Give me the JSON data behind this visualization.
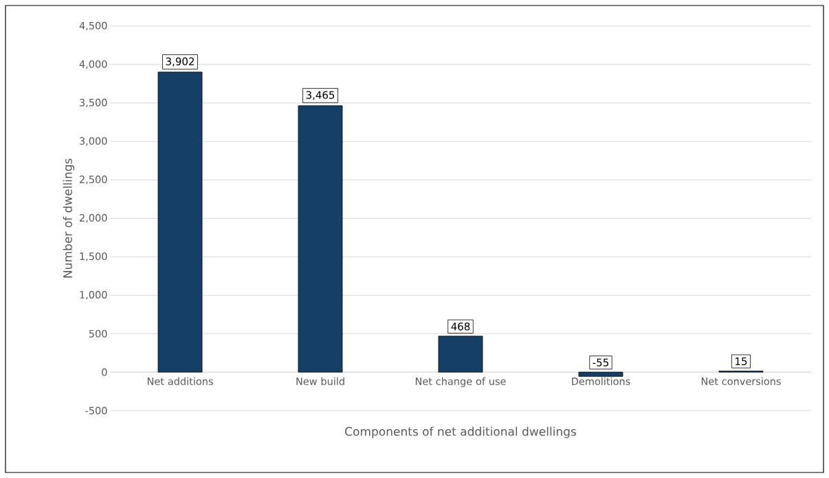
{
  "chart_data": {
    "type": "bar",
    "xlabel": "Components of net additional dwellings",
    "ylabel": "Number of dwellings",
    "categories": [
      "Net additions",
      "New build",
      "Net change of use",
      "Demolitions",
      "Net conversions"
    ],
    "values": [
      3902,
      3465,
      468,
      -55,
      15
    ],
    "value_labels": [
      "3,902",
      "3,465",
      "468",
      "-55",
      "15"
    ],
    "color": "#163f67",
    "ylim": [
      -500,
      4500
    ],
    "yticks": [
      -500,
      0,
      500,
      {
        "value": 1000,
        "label": "1,000"
      },
      {
        "value": 1500,
        "label": "1,500"
      },
      {
        "value": 2000,
        "label": "2,000"
      },
      {
        "value": 2500,
        "label": "2,500"
      },
      {
        "value": 3000,
        "label": "3,000"
      },
      {
        "value": 3500,
        "label": "3,500"
      },
      {
        "value": 4000,
        "label": "4,000"
      },
      {
        "value": 4500,
        "label": "4,500"
      }
    ],
    "grid": "y"
  }
}
